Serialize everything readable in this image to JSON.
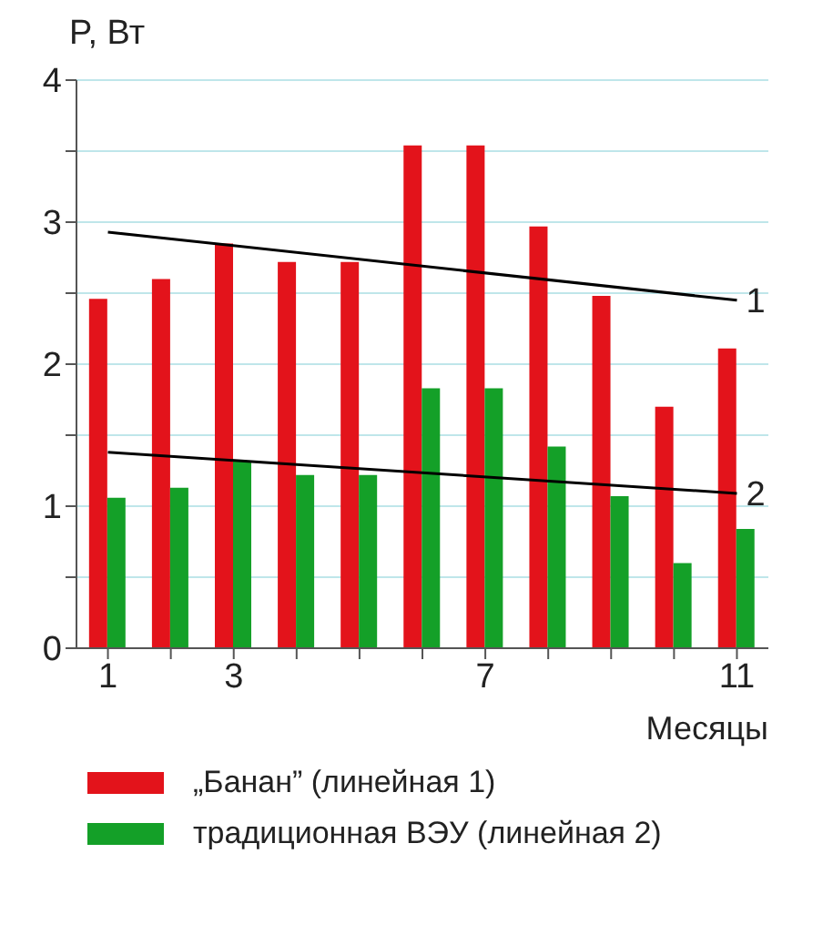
{
  "chart_data": {
    "type": "bar",
    "xlabel": "Месяцы",
    "ylabel": "P, Вт",
    "categories": [
      "1",
      null,
      "3",
      null,
      null,
      null,
      "7",
      null,
      null,
      null,
      "11"
    ],
    "series": [
      {
        "name": "„Банан” (линейная 1)",
        "color": "#e3131b",
        "values": [
          2.46,
          2.6,
          2.85,
          2.72,
          2.72,
          3.54,
          3.54,
          2.97,
          2.48,
          1.7,
          2.11
        ]
      },
      {
        "name": "традиционная ВЭУ (линейная 2)",
        "color": "#14a028",
        "values": [
          1.06,
          1.13,
          1.32,
          1.22,
          1.22,
          1.83,
          1.83,
          1.42,
          1.07,
          0.6,
          0.84
        ]
      },
      {
        "type": "line",
        "color": "#000000",
        "x": [
          "1",
          "11"
        ],
        "values": [
          2.93,
          2.45
        ]
      },
      {
        "type": "line",
        "color": "#000000",
        "x": [
          "1",
          "11"
        ],
        "values": [
          1.38,
          1.09
        ]
      }
    ],
    "ylim": [
      0,
      4
    ],
    "yticks": [
      0,
      {
        "value": 0.5,
        "label": null
      },
      1,
      {
        "value": 1.5,
        "label": null
      },
      2,
      {
        "value": 2.5,
        "label": null
      },
      3,
      {
        "value": 3.5,
        "label": null
      },
      4
    ],
    "grid": "y",
    "legend": "bottom",
    "annotations": [
      {
        "text": "1",
        "x": "11",
        "y": 2.45
      },
      {
        "text": "2",
        "x": "11",
        "y": 1.09
      }
    ]
  }
}
